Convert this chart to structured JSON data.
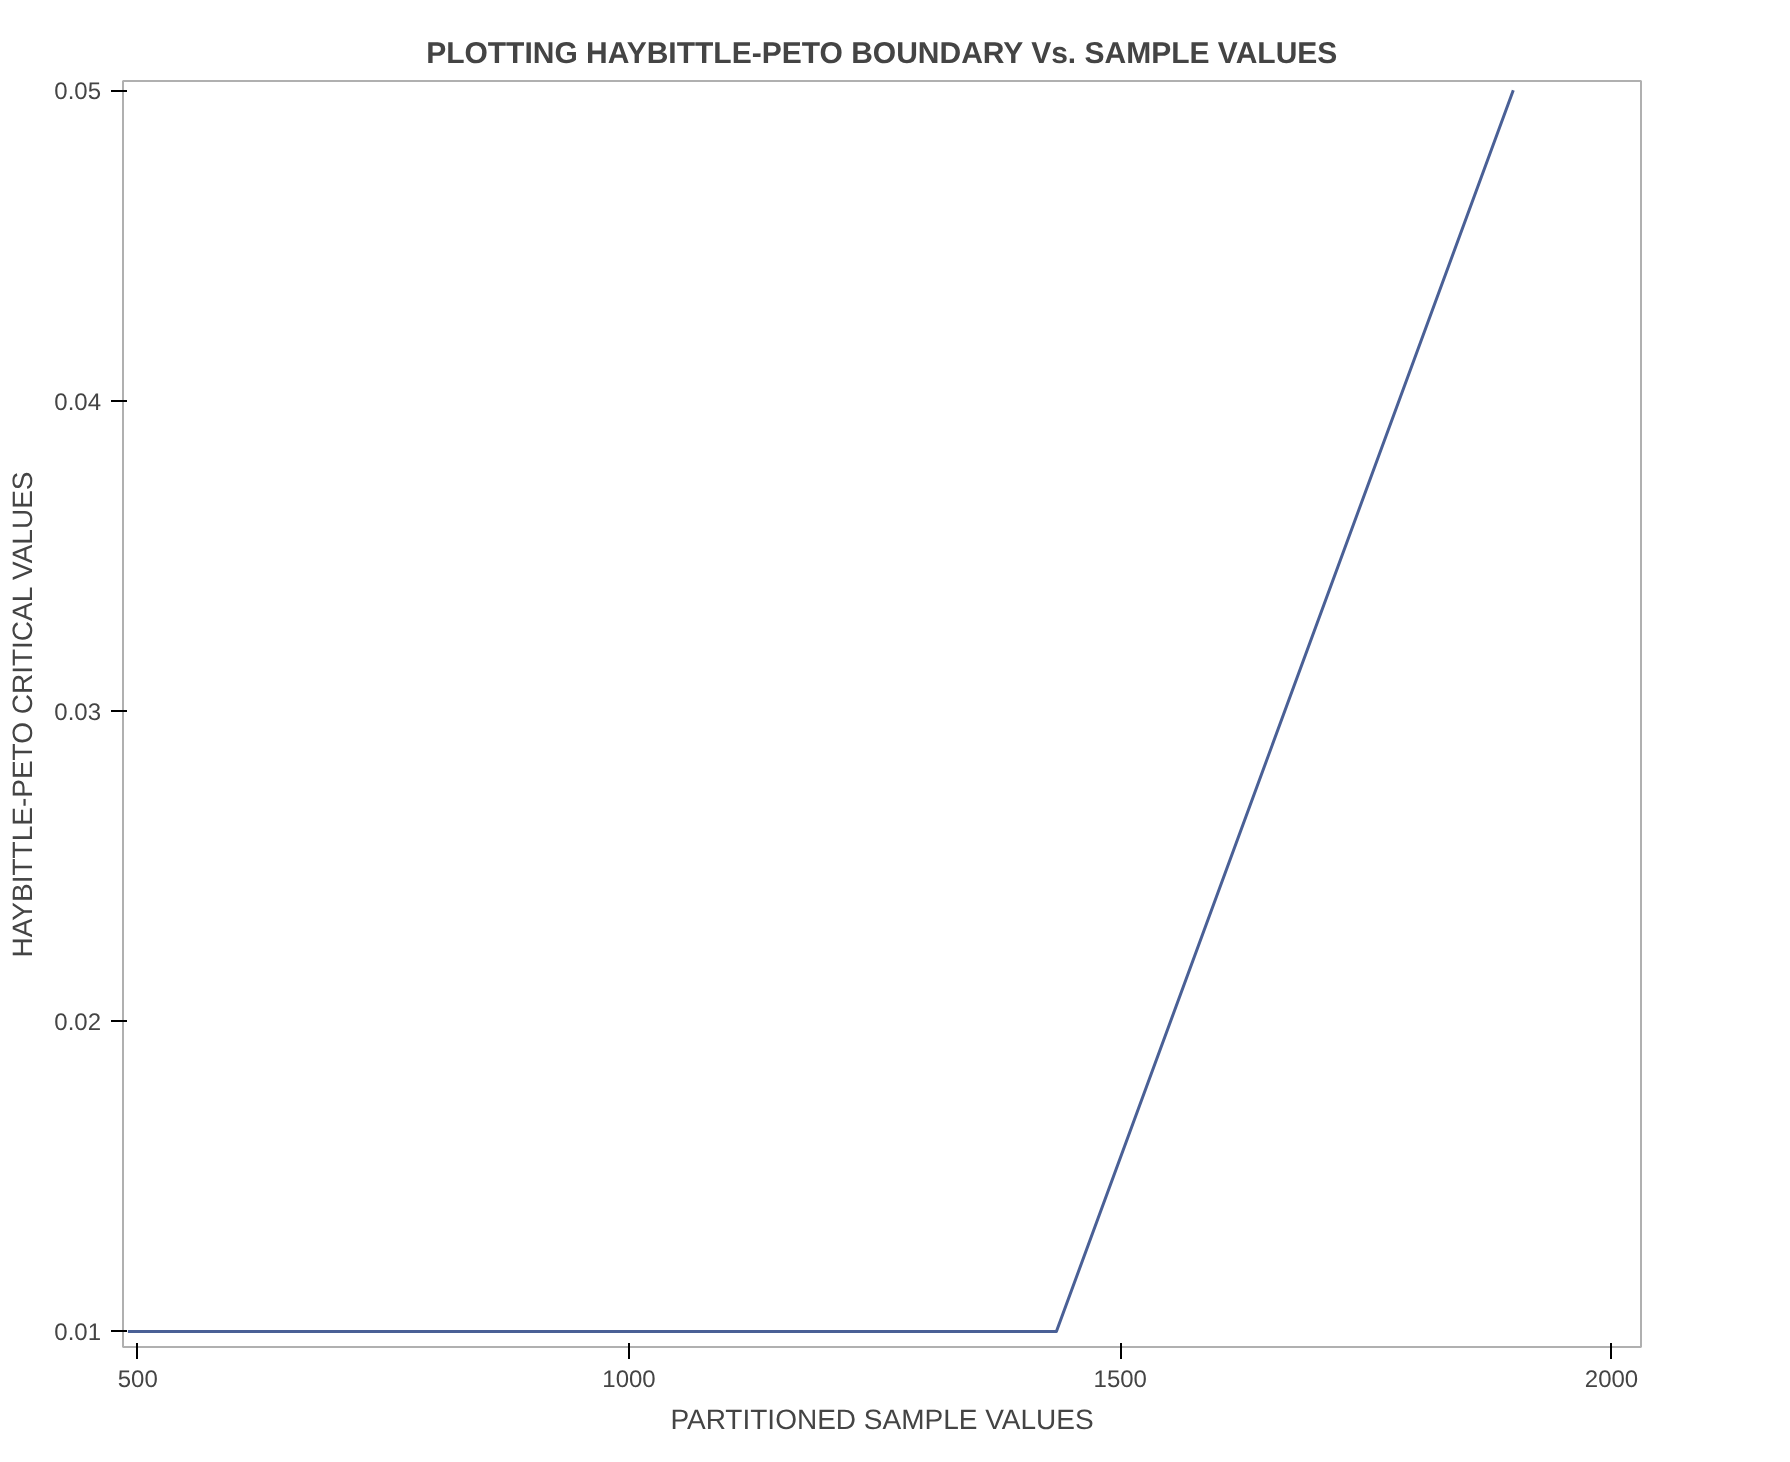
{
  "chart_data": {
    "type": "line",
    "title": "PLOTTING HAYBITTLE-PETO BOUNDARY Vs. SAMPLE VALUES",
    "xlabel": "PARTITIONED SAMPLE VALUES",
    "ylabel": "HAYBITTLE-PETO CRITICAL VALUES",
    "x": [
      490,
      1435,
      1900
    ],
    "series": [
      {
        "color": "#4a6096",
        "values": [
          0.01,
          0.01,
          0.05
        ]
      }
    ],
    "xlim": [
      485,
      2030
    ],
    "ylim": [
      0.0095,
      0.0503
    ],
    "xticks": [
      500,
      1000,
      1500,
      2000
    ],
    "yticks": [
      {
        "value": 0.01,
        "label": "0.01"
      },
      {
        "value": 0.02,
        "label": "0.02"
      },
      {
        "value": 0.03,
        "label": "0.03"
      },
      {
        "value": 0.04,
        "label": "0.04"
      },
      {
        "value": 0.05,
        "label": "0.05"
      }
    ],
    "grid": false,
    "marker": "none",
    "line_style": "solid"
  }
}
